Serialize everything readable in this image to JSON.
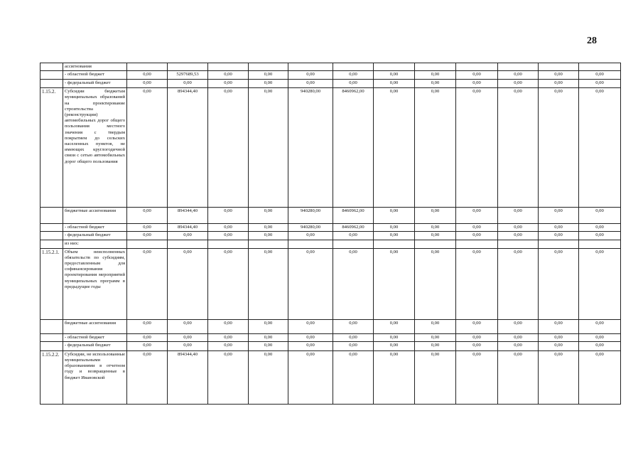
{
  "page_number": "28",
  "rows": [
    {
      "code": "",
      "desc": "ассигнования",
      "values": [
        "",
        "",
        "",
        "",
        "",
        "",
        "",
        "",
        "",
        "",
        "",
        ""
      ]
    },
    {
      "code": "",
      "desc": "- областной бюджет",
      "values": [
        "0,00",
        "5297689,53",
        "0,00",
        "0,00",
        "0,00",
        "0,00",
        "0,00",
        "0,00",
        "0,00",
        "0,00",
        "0,00",
        "0,00"
      ]
    },
    {
      "code": "",
      "desc": "- федеральный бюджет",
      "values": [
        "0,00",
        "0,00",
        "0,00",
        "0,00",
        "0,00",
        "0,00",
        "0,00",
        "0,00",
        "0,00",
        "0,00",
        "0,00",
        "0,00"
      ]
    },
    {
      "code": "1.15.2.",
      "desc": "Субсидии бюджетам муниципальных образований на проектирование строительства (реконструкции) автомобильных дорог общего пользования местного значения с твердым покрытием до сельских населенных пунктов, не имеющих круглогодичной связи с сетью автомобильных дорог общего пользования",
      "values": [
        "0,00",
        "894344,40",
        "0,00",
        "0,00",
        "940280,00",
        "8460962,00",
        "0,00",
        "0,00",
        "0,00",
        "0,00",
        "0,00",
        "0,00"
      ]
    },
    {
      "code": "",
      "desc": "бюджетные ассигнования",
      "values": [
        "0,00",
        "894344,40",
        "0,00",
        "0,00",
        "940280,00",
        "8460962,00",
        "0,00",
        "0,00",
        "0,00",
        "0,00",
        "0,00",
        "0,00"
      ]
    },
    {
      "code": "",
      "desc": "- областной бюджет",
      "values": [
        "0,00",
        "894344,40",
        "0,00",
        "0,00",
        "940280,00",
        "8460962,00",
        "0,00",
        "0,00",
        "0,00",
        "0,00",
        "0,00",
        "0,00"
      ]
    },
    {
      "code": "",
      "desc": "- федеральный бюджет",
      "values": [
        "0,00",
        "0,00",
        "0,00",
        "0,00",
        "0,00",
        "0,00",
        "0,00",
        "0,00",
        "0,00",
        "0,00",
        "0,00",
        "0,00"
      ]
    },
    {
      "code": "",
      "desc": "из них:",
      "values": [
        "",
        "",
        "",
        "",
        "",
        "",
        "",
        "",
        "",
        "",
        "",
        ""
      ]
    },
    {
      "code": "1.15.2.1.",
      "desc": "Объем неисполненных обязательств по субсидиям, предоставленным для софинансирования проектирования мероприятий муниципальных программ в предыдущие годы",
      "values": [
        "0,00",
        "0,00",
        "0,00",
        "0,00",
        "0,00",
        "0,00",
        "0,00",
        "0,00",
        "0,00",
        "0,00",
        "0,00",
        "0,00"
      ]
    },
    {
      "code": "",
      "desc": "бюджетные ассигнования",
      "values": [
        "0,00",
        "0,00",
        "0,00",
        "0,00",
        "0,00",
        "0,00",
        "0,00",
        "0,00",
        "0,00",
        "0,00",
        "0,00",
        "0,00"
      ]
    },
    {
      "code": "",
      "desc": "- областной бюджет",
      "values": [
        "0,00",
        "0,00",
        "0,00",
        "0,00",
        "0,00",
        "0,00",
        "0,00",
        "0,00",
        "0,00",
        "0,00",
        "0,00",
        "0,00"
      ]
    },
    {
      "code": "",
      "desc": "- федеральный бюджет",
      "values": [
        "0,00",
        "0,00",
        "0,00",
        "0,00",
        "0,00",
        "0,00",
        "0,00",
        "0,00",
        "0,00",
        "0,00",
        "0,00",
        "0,00"
      ]
    },
    {
      "code": "1.15.2.2.",
      "desc": "Субсидии, не использованные муниципальными образованиями в отчетном году и возвращенные в бюджет Ивановской",
      "values": [
        "0,00",
        "894344,40",
        "0,00",
        "0,00",
        "0,00",
        "0,00",
        "0,00",
        "0,00",
        "0,00",
        "0,00",
        "0,00",
        "0,00"
      ]
    }
  ]
}
